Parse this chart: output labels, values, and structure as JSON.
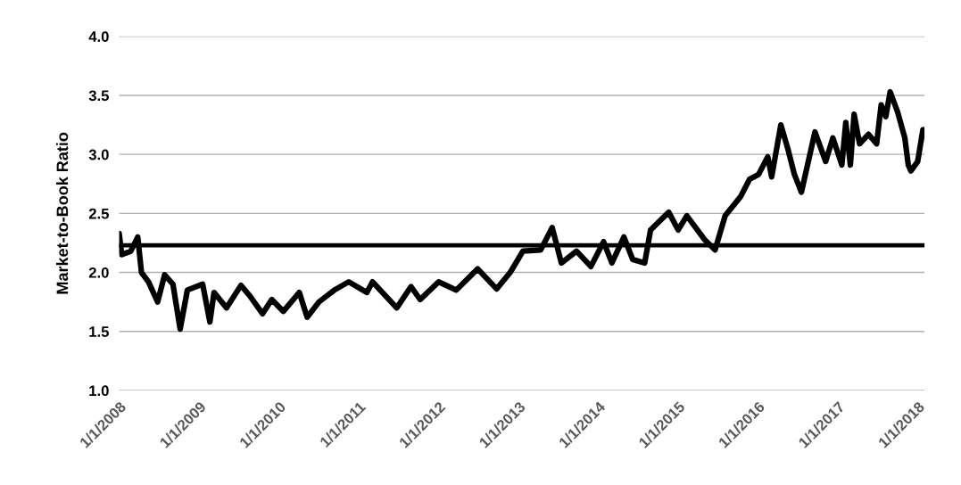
{
  "chart_data": {
    "type": "line",
    "ylabel": "Market-to-Book Ratio",
    "x": [
      "2008-01-01",
      "2008-01-13",
      "2008-02-23",
      "2008-03-26",
      "2008-04-12",
      "2008-05-14",
      "2008-06-25",
      "2008-07-27",
      "2008-09-03",
      "2008-10-06",
      "2008-11-08",
      "2008-12-19",
      "2009-01-17",
      "2009-02-19",
      "2009-03-10",
      "2009-05-06",
      "2009-07-11",
      "2009-08-21",
      "2009-10-18",
      "2009-11-29",
      "2010-01-21",
      "2010-04-04",
      "2010-05-10",
      "2010-07-03",
      "2010-09-11",
      "2010-11-16",
      "2011-02-07",
      "2011-03-05",
      "2011-06-24",
      "2011-08-28",
      "2011-10-09",
      "2012-01-01",
      "2012-03-22",
      "2012-06-28",
      "2012-09-23",
      "2012-11-24",
      "2013-01-21",
      "2013-04-12",
      "2013-06-04",
      "2013-07-16",
      "2013-09-23",
      "2013-11-28",
      "2014-01-25",
      "2014-03-04",
      "2014-04-28",
      "2014-06-07",
      "2014-08-01",
      "2014-08-28",
      "2014-11-19",
      "2015-01-01",
      "2015-02-10",
      "2015-05-01",
      "2015-06-19",
      "2015-08-04",
      "2015-10-13",
      "2015-11-24",
      "2016-01-04",
      "2016-02-15",
      "2016-03-04",
      "2016-04-15",
      "2016-05-18",
      "2016-06-16",
      "2016-07-18",
      "2016-09-18",
      "2016-11-06",
      "2016-12-09",
      "2017-01-19",
      "2017-02-06",
      "2017-02-27",
      "2017-03-16",
      "2017-04-10",
      "2017-05-21",
      "2017-06-27",
      "2017-07-18",
      "2017-08-08",
      "2017-08-28",
      "2017-10-01",
      "2017-11-03",
      "2017-11-19",
      "2017-12-01",
      "2018-01-01",
      "2018-01-25"
    ],
    "series": [
      {
        "color": "#000000",
        "values": [
          2.33,
          2.15,
          2.18,
          2.3,
          2.0,
          1.92,
          1.75,
          1.98,
          1.9,
          1.52,
          1.85,
          1.88,
          1.9,
          1.58,
          1.83,
          1.7,
          1.89,
          1.8,
          1.65,
          1.77,
          1.67,
          1.83,
          1.62,
          1.75,
          1.85,
          1.92,
          1.83,
          1.92,
          1.7,
          1.88,
          1.77,
          1.92,
          1.85,
          2.03,
          1.86,
          2.0,
          2.18,
          2.19,
          2.38,
          2.08,
          2.18,
          2.05,
          2.26,
          2.08,
          2.3,
          2.11,
          2.08,
          2.36,
          2.51,
          2.36,
          2.48,
          2.28,
          2.19,
          2.48,
          2.64,
          2.79,
          2.83,
          2.98,
          2.81,
          3.25,
          3.04,
          2.83,
          2.68,
          3.19,
          2.94,
          3.14,
          2.91,
          3.27,
          2.91,
          3.34,
          3.09,
          3.17,
          3.09,
          3.42,
          3.32,
          3.53,
          3.36,
          3.14,
          2.91,
          2.86,
          2.94,
          3.21
        ]
      }
    ],
    "ref_lines": [
      {
        "axis": "y",
        "value": 2.23,
        "color": "#000000",
        "line_style": "solid"
      }
    ],
    "xlim": [
      "2008-01-01",
      "2018-02-01"
    ],
    "xticks": [
      {
        "value": "2008-01-01",
        "label": "1/1/2008"
      },
      {
        "value": "2009-01-01",
        "label": "1/1/2009"
      },
      {
        "value": "2010-01-01",
        "label": "1/1/2010"
      },
      {
        "value": "2011-01-01",
        "label": "1/1/2011"
      },
      {
        "value": "2012-01-01",
        "label": "1/1/2012"
      },
      {
        "value": "2013-01-01",
        "label": "1/1/2013"
      },
      {
        "value": "2014-01-01",
        "label": "1/1/2014"
      },
      {
        "value": "2015-01-01",
        "label": "1/1/2015"
      },
      {
        "value": "2016-01-01",
        "label": "1/1/2016"
      },
      {
        "value": "2017-01-01",
        "label": "1/1/2017"
      },
      {
        "value": "2018-01-01",
        "label": "1/1/2018"
      }
    ],
    "ylim": [
      1.0,
      4.0
    ],
    "yticks": [
      {
        "value": 1.0,
        "label": "1.0"
      },
      {
        "value": 1.5,
        "label": "1.5"
      },
      {
        "value": 2.0,
        "label": "2.0"
      },
      {
        "value": 2.5,
        "label": "2.5"
      },
      {
        "value": 3.0,
        "label": "3.0"
      },
      {
        "value": 3.5,
        "label": "3.5"
      },
      {
        "value": 4.0,
        "label": "4.0"
      }
    ],
    "grid": "y",
    "legend": false,
    "marker": "none",
    "line_style": "solid"
  }
}
